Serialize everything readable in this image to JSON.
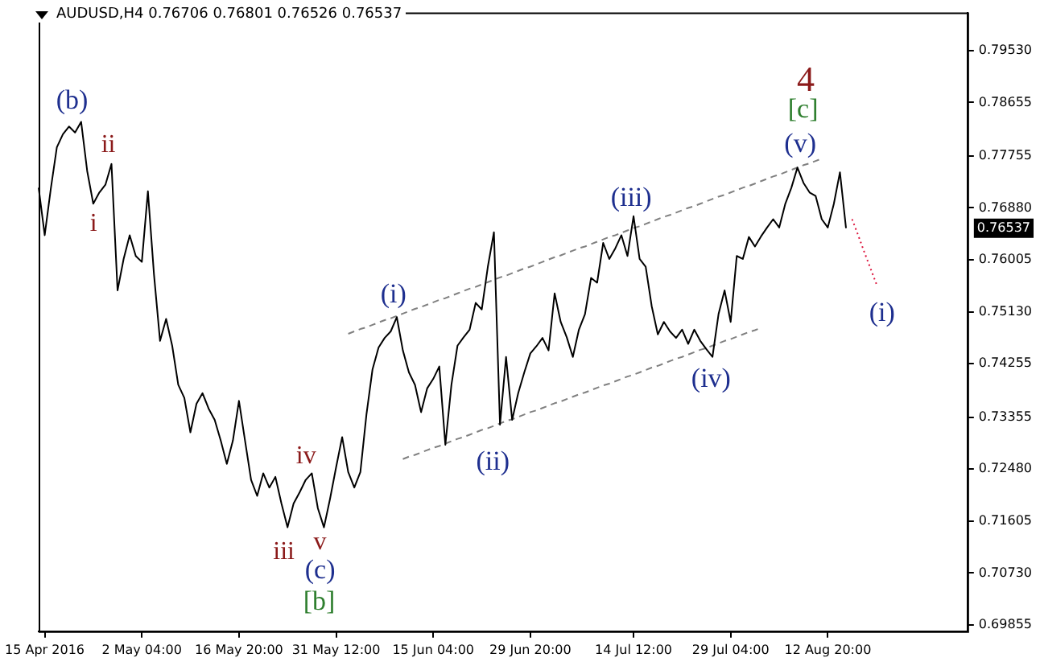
{
  "chart_data": {
    "type": "line",
    "title": "AUDUSD,H4  0.76706 0.76801 0.76526 0.76537",
    "categories": [
      null,
      "15 Apr 2016",
      null,
      null,
      null,
      null,
      null,
      null,
      null,
      null,
      null,
      null,
      null,
      null,
      null,
      null,
      null,
      "2 May 04:00",
      null,
      null,
      null,
      null,
      null,
      null,
      null,
      null,
      null,
      null,
      null,
      null,
      null,
      null,
      null,
      "16 May 20:00",
      null,
      null,
      null,
      null,
      null,
      null,
      null,
      null,
      null,
      null,
      null,
      null,
      null,
      null,
      null,
      "31 May 12:00",
      null,
      null,
      null,
      null,
      null,
      null,
      null,
      null,
      null,
      null,
      null,
      null,
      null,
      null,
      null,
      "15 Jun 04:00",
      null,
      null,
      null,
      null,
      null,
      null,
      null,
      null,
      null,
      null,
      null,
      null,
      null,
      null,
      null,
      "29 Jun 20:00",
      null,
      null,
      null,
      null,
      null,
      null,
      null,
      null,
      null,
      null,
      null,
      null,
      null,
      null,
      null,
      null,
      "14 Jul 12:00",
      null,
      null,
      null,
      null,
      null,
      null,
      null,
      null,
      null,
      null,
      null,
      null,
      null,
      null,
      null,
      "29 Jul 04:00",
      null,
      null,
      null,
      null,
      null,
      null,
      null,
      null,
      null,
      null,
      null,
      null,
      null,
      null,
      null,
      "12 Aug 20:00",
      null,
      null,
      null,
      null,
      null,
      null,
      null,
      null,
      null,
      null,
      null,
      null,
      null,
      null,
      null,
      null,
      null,
      null,
      null,
      null,
      null,
      null,
      null
    ],
    "series": [
      {
        "color": "#000000",
        "values": [
          0.7722,
          0.7642,
          0.772,
          0.779,
          0.7812,
          0.7825,
          0.7815,
          0.7833,
          0.775,
          0.7695,
          0.7714,
          0.7727,
          0.7762,
          0.7549,
          0.7602,
          0.7642,
          0.7607,
          0.7597,
          0.7716,
          0.7576,
          0.7464,
          0.7501,
          0.7456,
          0.739,
          0.7368,
          0.731,
          0.7358,
          0.7376,
          0.735,
          0.7331,
          0.7296,
          0.7257,
          0.7296,
          0.7363,
          0.7296,
          0.723,
          0.7203,
          0.7241,
          0.7217,
          0.7235,
          0.719,
          0.715,
          0.719,
          0.7209,
          0.723,
          0.7241,
          0.7182,
          0.715,
          0.7198,
          0.7251,
          0.7302,
          0.7243,
          0.7217,
          0.7243,
          0.734,
          0.7416,
          0.7453,
          0.7469,
          0.748,
          0.7504,
          0.7448,
          0.7411,
          0.739,
          0.7344,
          0.7384,
          0.74,
          0.7421,
          0.7289,
          0.739,
          0.7456,
          0.747,
          0.7483,
          0.7528,
          0.7517,
          0.7589,
          0.7647,
          0.7323,
          0.7437,
          0.7331,
          0.7376,
          0.7411,
          0.7443,
          0.7455,
          0.7469,
          0.7448,
          0.7544,
          0.7496,
          0.747,
          0.7437,
          0.7483,
          0.7509,
          0.757,
          0.7562,
          0.7629,
          0.7602,
          0.762,
          0.7642,
          0.7607,
          0.7674,
          0.7602,
          0.7589,
          0.7522,
          0.7475,
          0.7496,
          0.748,
          0.7469,
          0.7483,
          0.7459,
          0.7483,
          0.7464,
          0.745,
          0.7437,
          0.7509,
          0.7549,
          0.7496,
          0.7607,
          0.7602,
          0.7639,
          0.7623,
          0.764,
          0.7655,
          0.7669,
          0.7655,
          0.7695,
          0.7722,
          0.7756,
          0.773,
          0.7714,
          0.7708,
          0.7669,
          0.7655,
          0.7695,
          0.7748,
          0.7654,
          null,
          null,
          null,
          null,
          null,
          null,
          null,
          null,
          null,
          null,
          null,
          null,
          null,
          null,
          null,
          null,
          null,
          null,
          null,
          null
        ]
      },
      {
        "color": "#808080",
        "line_style": "dashed",
        "values": [
          null,
          null,
          null,
          null,
          null,
          null,
          null,
          null,
          null,
          null,
          null,
          null,
          null,
          null,
          null,
          null,
          null,
          null,
          null,
          null,
          null,
          null,
          null,
          null,
          null,
          null,
          null,
          null,
          null,
          null,
          null,
          null,
          null,
          null,
          null,
          null,
          null,
          null,
          null,
          null,
          null,
          null,
          null,
          null,
          null,
          null,
          null,
          null,
          null,
          null,
          null,
          0.7476,
          0.748,
          0.7484,
          0.7487,
          0.7491,
          0.7495,
          0.7499,
          0.7502,
          0.7506,
          0.751,
          0.7514,
          0.7518,
          0.7521,
          0.7525,
          0.7529,
          0.7533,
          0.7536,
          0.754,
          0.7544,
          0.7548,
          0.7552,
          0.7555,
          0.7559,
          0.7563,
          0.7567,
          0.7571,
          0.7574,
          0.7578,
          0.7582,
          0.7586,
          0.7589,
          0.7593,
          0.7597,
          0.7601,
          0.7605,
          0.7608,
          0.7612,
          0.7616,
          0.762,
          0.7623,
          0.7627,
          0.7631,
          0.7635,
          0.7639,
          0.7642,
          0.7646,
          0.765,
          0.7654,
          0.7657,
          0.7661,
          0.7665,
          0.7669,
          0.7673,
          0.7676,
          0.768,
          0.7684,
          0.7688,
          0.7691,
          0.7695,
          0.7699,
          0.7703,
          0.7707,
          0.771,
          0.7714,
          0.7718,
          0.7722,
          0.7725,
          0.7729,
          0.7733,
          0.7737,
          0.7741,
          0.7744,
          0.7748,
          0.7752,
          0.7756,
          0.776,
          0.7763,
          0.7767,
          0.7771,
          null,
          null,
          null,
          null,
          null,
          null,
          null,
          null,
          null,
          null,
          null,
          null,
          null,
          null,
          null,
          null,
          null,
          null,
          null,
          null,
          null,
          null,
          null,
          null
        ]
      },
      {
        "color": "#808080",
        "line_style": "dashed",
        "values": [
          null,
          null,
          null,
          null,
          null,
          null,
          null,
          null,
          null,
          null,
          null,
          null,
          null,
          null,
          null,
          null,
          null,
          null,
          null,
          null,
          null,
          null,
          null,
          null,
          null,
          null,
          null,
          null,
          null,
          null,
          null,
          null,
          null,
          null,
          null,
          null,
          null,
          null,
          null,
          null,
          null,
          null,
          null,
          null,
          null,
          null,
          null,
          null,
          null,
          null,
          null,
          null,
          null,
          null,
          null,
          null,
          null,
          null,
          null,
          null,
          0.7265,
          0.7269,
          0.7272,
          0.7276,
          0.728,
          0.7284,
          0.7287,
          0.7291,
          0.7295,
          0.7299,
          0.7302,
          0.7306,
          0.731,
          0.7314,
          0.7317,
          0.7321,
          0.7325,
          0.7329,
          0.7332,
          0.7336,
          0.734,
          0.7344,
          0.7347,
          0.7351,
          0.7355,
          0.7359,
          0.7362,
          0.7366,
          0.737,
          0.7374,
          0.7377,
          0.7381,
          0.7385,
          0.7389,
          0.7392,
          0.7396,
          0.74,
          0.7404,
          0.7407,
          0.7411,
          0.7415,
          0.7419,
          0.7422,
          0.7426,
          0.743,
          0.7434,
          0.7437,
          0.7441,
          0.7445,
          0.7449,
          0.7452,
          0.7456,
          0.746,
          0.7464,
          0.7467,
          0.7471,
          0.7475,
          0.7479,
          0.7482,
          0.7486,
          null,
          null,
          null,
          null,
          null,
          null,
          null,
          null,
          null,
          null,
          null,
          null,
          null,
          null,
          null,
          null,
          null,
          null,
          null,
          null,
          null,
          null,
          null,
          null,
          null,
          null,
          null,
          null,
          null,
          null,
          null,
          null,
          null,
          null
        ]
      },
      {
        "color": "#dc143c",
        "line_style": "dotted",
        "values": [
          null,
          null,
          null,
          null,
          null,
          null,
          null,
          null,
          null,
          null,
          null,
          null,
          null,
          null,
          null,
          null,
          null,
          null,
          null,
          null,
          null,
          null,
          null,
          null,
          null,
          null,
          null,
          null,
          null,
          null,
          null,
          null,
          null,
          null,
          null,
          null,
          null,
          null,
          null,
          null,
          null,
          null,
          null,
          null,
          null,
          null,
          null,
          null,
          null,
          null,
          null,
          null,
          null,
          null,
          null,
          null,
          null,
          null,
          null,
          null,
          null,
          null,
          null,
          null,
          null,
          null,
          null,
          null,
          null,
          null,
          null,
          null,
          null,
          null,
          null,
          null,
          null,
          null,
          null,
          null,
          null,
          null,
          null,
          null,
          null,
          null,
          null,
          null,
          null,
          null,
          null,
          null,
          null,
          null,
          null,
          null,
          null,
          null,
          null,
          null,
          null,
          null,
          null,
          null,
          null,
          null,
          null,
          null,
          null,
          null,
          null,
          null,
          null,
          null,
          null,
          null,
          null,
          null,
          null,
          null,
          null,
          null,
          null,
          null,
          null,
          null,
          null,
          null,
          null,
          null,
          null,
          null,
          null,
          null,
          0.7669,
          0.7642,
          0.7614,
          0.7587,
          0.756,
          null,
          null,
          null,
          null,
          null,
          null,
          null,
          null,
          null,
          null,
          null,
          null,
          null,
          null,
          null
        ]
      }
    ],
    "ylim": [
      0.6975,
      0.8017
    ],
    "yticks": [
      {
        "value": 0.69855,
        "label": "0.69855"
      },
      {
        "value": 0.7073,
        "label": "0.70730"
      },
      {
        "value": 0.71605,
        "label": "0.71605"
      },
      {
        "value": 0.7248,
        "label": "0.72480"
      },
      {
        "value": 0.73355,
        "label": "0.73355"
      },
      {
        "value": 0.74255,
        "label": "0.74255"
      },
      {
        "value": 0.7513,
        "label": "0.75130"
      },
      {
        "value": 0.76005,
        "label": "0.76005"
      },
      {
        "value": 0.7688,
        "label": "0.76880"
      },
      {
        "value": 0.77755,
        "label": "0.77755"
      },
      {
        "value": 0.78655,
        "label": "0.78655"
      },
      {
        "value": 0.7953,
        "label": "0.79530"
      }
    ],
    "annotations": [
      "(b)",
      "ii",
      "i",
      "iii",
      "iv",
      "v",
      "(c)",
      "[b]",
      "(i)",
      "(ii)",
      "(iii)",
      "(iv)",
      "(v)",
      "[c]",
      "4",
      "(i)",
      "0.76537"
    ]
  }
}
